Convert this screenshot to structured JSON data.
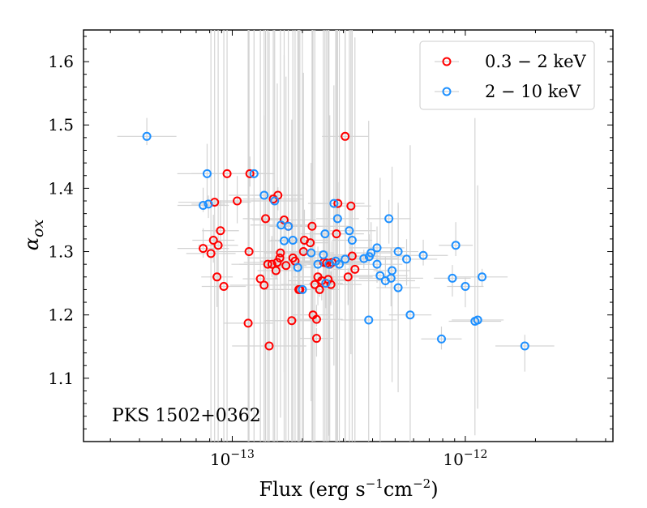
{
  "chart_data": {
    "type": "scatter",
    "title": "",
    "annotation": "PKS 1502+0362",
    "xlabel_main": "Flux (erg s",
    "xlabel_exp1": "−1",
    "xlabel_mid": "cm",
    "xlabel_exp2": "−2",
    "xlabel_end": ")",
    "ylabel_base": "α",
    "ylabel_sub": "ox",
    "xscale": "log",
    "xlim": [
      2.3e-14,
      4.3e-12
    ],
    "ylim": [
      1.0,
      1.65
    ],
    "yticks": [
      1.1,
      1.2,
      1.3,
      1.4,
      1.5,
      1.6
    ],
    "ytick_labels": [
      "1.1",
      "1.2",
      "1.3",
      "1.4",
      "1.5",
      "1.6"
    ],
    "xticks": [
      1e-13,
      1e-12
    ],
    "xtick_labels": [
      {
        "base": "10",
        "exp": "−13"
      },
      {
        "base": "10",
        "exp": "−12"
      }
    ],
    "legend_position": "top-right",
    "series": [
      {
        "name": "0.3 − 2 keV",
        "color": "#ff0000",
        "points": [
          [
            7.5e-14,
            1.305
          ],
          [
            8.1e-14,
            1.297
          ],
          [
            8.3e-14,
            1.318
          ],
          [
            8.7e-14,
            1.31
          ],
          [
            8.6e-14,
            1.26
          ],
          [
            8.4e-14,
            1.378
          ],
          [
            8.9e-14,
            1.333
          ],
          [
            9.2e-14,
            1.245
          ],
          [
            9.5e-14,
            1.423
          ],
          [
            1.05e-13,
            1.38
          ],
          [
            1.17e-13,
            1.187
          ],
          [
            1.18e-13,
            1.3
          ],
          [
            1.19e-13,
            1.423
          ],
          [
            1.32e-13,
            1.257
          ],
          [
            1.37e-13,
            1.247
          ],
          [
            1.39e-13,
            1.352
          ],
          [
            1.42e-13,
            1.28
          ],
          [
            1.44e-13,
            1.151
          ],
          [
            1.48e-13,
            1.28
          ],
          [
            1.5e-13,
            1.383
          ],
          [
            1.54e-13,
            1.27
          ],
          [
            1.56e-13,
            1.283
          ],
          [
            1.57e-13,
            1.389
          ],
          [
            1.6e-13,
            1.29
          ],
          [
            1.61e-13,
            1.298
          ],
          [
            1.67e-13,
            1.35
          ],
          [
            1.7e-13,
            1.278
          ],
          [
            1.74e-13,
            1.34
          ],
          [
            1.8e-13,
            1.191
          ],
          [
            1.82e-13,
            1.29
          ],
          [
            1.86e-13,
            1.285
          ],
          [
            1.93e-13,
            1.24
          ],
          [
            1.95e-13,
            1.24
          ],
          [
            2.02e-13,
            1.3
          ],
          [
            2.04e-13,
            1.318
          ],
          [
            2.16e-13,
            1.314
          ],
          [
            2.2e-13,
            1.34
          ],
          [
            2.22e-13,
            1.2
          ],
          [
            2.26e-13,
            1.248
          ],
          [
            2.3e-13,
            1.163
          ],
          [
            2.3e-13,
            1.193
          ],
          [
            2.33e-13,
            1.26
          ],
          [
            2.37e-13,
            1.24
          ],
          [
            2.42e-13,
            1.254
          ],
          [
            2.47e-13,
            1.283
          ],
          [
            2.54e-13,
            1.282
          ],
          [
            2.58e-13,
            1.256
          ],
          [
            2.62e-13,
            1.28
          ],
          [
            2.65e-13,
            1.248
          ],
          [
            2.68e-13,
            1.283
          ],
          [
            2.8e-13,
            1.328
          ],
          [
            2.84e-13,
            1.376
          ],
          [
            3.05e-13,
            1.482
          ],
          [
            3.14e-13,
            1.26
          ],
          [
            3.23e-13,
            1.372
          ],
          [
            3.27e-13,
            1.293
          ],
          [
            3.36e-13,
            1.272
          ]
        ]
      },
      {
        "name": "2 − 10 keV",
        "color": "#1e90ff",
        "points": [
          [
            4.3e-14,
            1.482
          ],
          [
            7.5e-14,
            1.373
          ],
          [
            7.9e-14,
            1.375
          ],
          [
            7.8e-14,
            1.423
          ],
          [
            1.24e-13,
            1.423
          ],
          [
            1.37e-13,
            1.389
          ],
          [
            1.52e-13,
            1.38
          ],
          [
            1.62e-13,
            1.342
          ],
          [
            1.67e-13,
            1.317
          ],
          [
            1.74e-13,
            1.34
          ],
          [
            1.82e-13,
            1.318
          ],
          [
            1.91e-13,
            1.275
          ],
          [
            2.18e-13,
            1.298
          ],
          [
            2.33e-13,
            1.28
          ],
          [
            2.5e-13,
            1.328
          ],
          [
            2.52e-13,
            1.25
          ],
          [
            2.6e-13,
            1.28
          ],
          [
            2.73e-13,
            1.376
          ],
          [
            2.78e-13,
            1.285
          ],
          [
            2.83e-13,
            1.352
          ],
          [
            2.88e-13,
            1.28
          ],
          [
            3.05e-13,
            1.288
          ],
          [
            3.18e-13,
            1.333
          ],
          [
            3.27e-13,
            1.318
          ],
          [
            3.67e-13,
            1.289
          ],
          [
            3.87e-13,
            1.292
          ],
          [
            3.94e-13,
            1.298
          ],
          [
            4.18e-13,
            1.306
          ],
          [
            4.18e-13,
            1.28
          ],
          [
            4.31e-13,
            1.262
          ],
          [
            4.54e-13,
            1.254
          ],
          [
            4.7e-13,
            1.352
          ],
          [
            4.8e-13,
            1.258
          ],
          [
            4.85e-13,
            1.27
          ],
          [
            5.15e-13,
            1.3
          ],
          [
            5.15e-13,
            1.243
          ],
          [
            5.6e-13,
            1.288
          ],
          [
            5.8e-13,
            1.2
          ],
          [
            3.85e-13,
            1.192
          ],
          [
            6.6e-13,
            1.294
          ],
          [
            7.9e-13,
            1.162
          ],
          [
            8.8e-13,
            1.258
          ],
          [
            9.1e-13,
            1.31
          ],
          [
            1e-12,
            1.245
          ],
          [
            1.1e-12,
            1.19
          ],
          [
            1.13e-12,
            1.192
          ],
          [
            1.18e-12,
            1.26
          ],
          [
            1.8e-12,
            1.151
          ],
          [
            2e-13,
            1.24
          ],
          [
            2.46e-13,
            1.295
          ]
        ]
      }
    ]
  }
}
